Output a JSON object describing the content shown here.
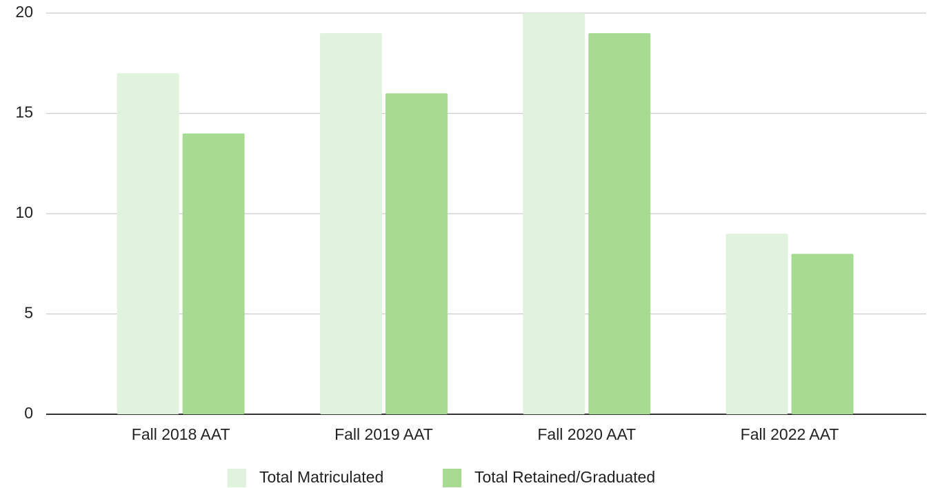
{
  "chart_data": {
    "type": "bar",
    "categories": [
      "Fall 2018 AAT",
      "Fall 2019 AAT",
      "Fall 2020 AAT",
      "Fall 2022 AAT"
    ],
    "series": [
      {
        "name": "Total Matriculated",
        "color": "#e0f3dc",
        "values": [
          17,
          19,
          20,
          9
        ]
      },
      {
        "name": "Total Retained/Graduated",
        "color": "#a8db92",
        "values": [
          14,
          16,
          19,
          8
        ]
      }
    ],
    "ylim": [
      0,
      20
    ],
    "yticks": [
      0,
      5,
      10,
      15,
      20
    ],
    "grid": true,
    "legend": "bottom"
  }
}
